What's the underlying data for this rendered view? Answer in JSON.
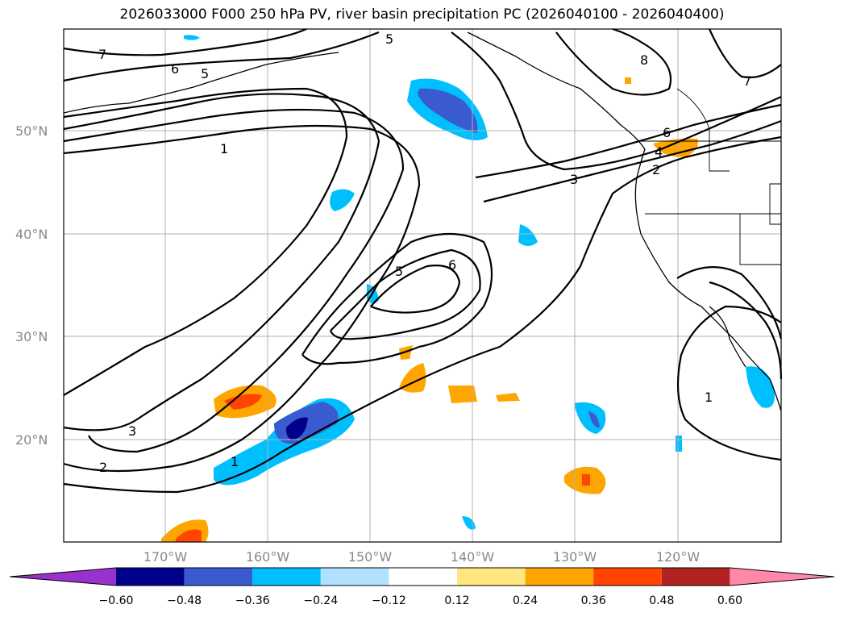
{
  "title": "2026033000 F000 250 hPa PV, river basin precipitation PC (2026040100 - 2026040400)",
  "map": {
    "lat_labels": [
      "50°N",
      "40°N",
      "30°N",
      "20°N"
    ],
    "lon_labels": [
      "170°W",
      "160°W",
      "150°W",
      "140°W",
      "130°W",
      "120°W"
    ],
    "contour_labels": [
      "7",
      "6",
      "5",
      "5",
      "1",
      "5",
      "6",
      "3",
      "6",
      "4",
      "2",
      "7",
      "8",
      "3",
      "2",
      "1",
      "1"
    ]
  },
  "colorbar": {
    "ticks": [
      "−0.60",
      "−0.48",
      "−0.36",
      "−0.24",
      "−0.12",
      "0.12",
      "0.24",
      "0.36",
      "0.48",
      "0.60"
    ],
    "colors": [
      "#9932cc",
      "#00008b",
      "#3a5bd0",
      "#00bfff",
      "#b0e2ff",
      "#ffffff",
      "#ffe680",
      "#ffa500",
      "#ff4500",
      "#b22222",
      "#ff88aa"
    ]
  }
}
